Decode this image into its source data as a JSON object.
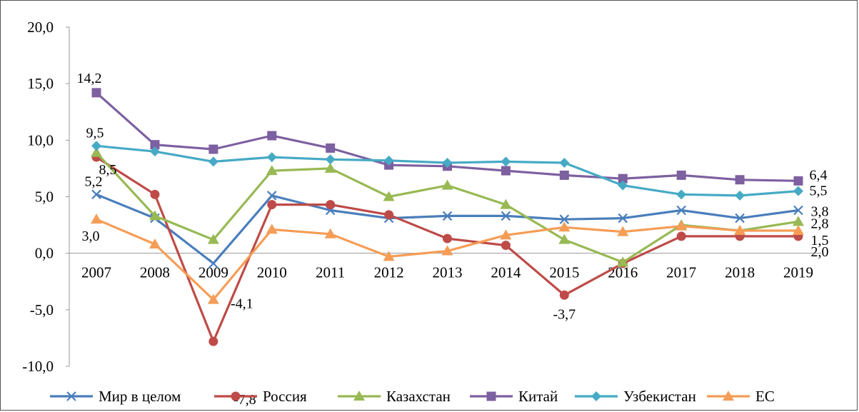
{
  "chart_data": {
    "type": "line",
    "title": "",
    "xlabel": "",
    "ylabel": "",
    "ylim": [
      -10,
      20
    ],
    "yticks": [
      "20,0",
      "15,0",
      "10,0",
      "5,0",
      "0,0",
      "-5,0",
      "-10,0"
    ],
    "categories": [
      "2007",
      "2008",
      "2009",
      "2010",
      "2011",
      "2012",
      "2013",
      "2014",
      "2015",
      "2016",
      "2017",
      "2018",
      "2019"
    ],
    "legend_position": "bottom",
    "series": [
      {
        "name": "Мир в целом",
        "color": "#4a7ebb",
        "marker": "x",
        "values": [
          5.2,
          3.1,
          -0.9,
          5.1,
          3.8,
          3.1,
          3.3,
          3.3,
          3.0,
          3.1,
          3.8,
          3.1,
          3.8
        ]
      },
      {
        "name": "Россия",
        "color": "#be4b48",
        "marker": "circle",
        "values": [
          8.5,
          5.2,
          -7.8,
          4.3,
          4.3,
          3.4,
          1.3,
          0.7,
          -3.7,
          -0.9,
          1.5,
          1.5,
          1.5
        ]
      },
      {
        "name": "Казахстан",
        "color": "#98b954",
        "marker": "triangle",
        "values": [
          8.9,
          3.3,
          1.2,
          7.3,
          7.5,
          5.0,
          6.0,
          4.3,
          1.2,
          -0.8,
          2.5,
          2.0,
          2.8
        ]
      },
      {
        "name": "Китай",
        "color": "#7d60a0",
        "marker": "square",
        "values": [
          14.2,
          9.6,
          9.2,
          10.4,
          9.3,
          7.8,
          7.7,
          7.3,
          6.9,
          6.6,
          6.9,
          6.5,
          6.4
        ]
      },
      {
        "name": "Узбекистан",
        "color": "#46aac5",
        "marker": "diamond",
        "values": [
          9.5,
          9.0,
          8.1,
          8.5,
          8.3,
          8.2,
          8.0,
          8.1,
          8.0,
          6.0,
          5.2,
          5.1,
          5.5
        ]
      },
      {
        "name": "ЕС",
        "color": "#f59d56",
        "marker": "triangle",
        "values": [
          3.0,
          0.8,
          -4.1,
          2.1,
          1.7,
          -0.3,
          0.2,
          1.6,
          2.3,
          1.9,
          2.4,
          2.0,
          2.0
        ]
      }
    ],
    "data_labels": [
      {
        "text": "14,2",
        "series": 3,
        "index": 0
      },
      {
        "text": "9,5",
        "series": 4,
        "index": 0
      },
      {
        "text": "8,5",
        "series": 1,
        "index": 0
      },
      {
        "text": "5,2",
        "series": 0,
        "index": 0
      },
      {
        "text": "3,0",
        "series": 5,
        "index": 0
      },
      {
        "text": "-4,1",
        "series": 5,
        "index": 2
      },
      {
        "text": "-7,8",
        "series": 1,
        "index": 2
      },
      {
        "text": "-3,7",
        "series": 1,
        "index": 8
      },
      {
        "text": "6,4",
        "series": 3,
        "index": 12
      },
      {
        "text": "5,5",
        "series": 4,
        "index": 12
      },
      {
        "text": "3,8",
        "series": 0,
        "index": 12
      },
      {
        "text": "2,8",
        "series": 2,
        "index": 12
      },
      {
        "text": "1,5",
        "series": 1,
        "index": 12
      },
      {
        "text": "2,0",
        "series": 5,
        "index": 12
      }
    ]
  }
}
